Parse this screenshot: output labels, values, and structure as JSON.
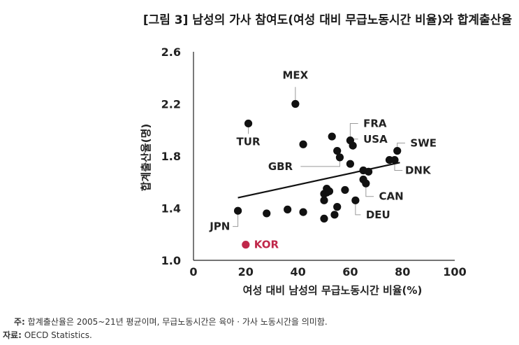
{
  "chart_data": {
    "type": "scatter",
    "title": "[그림 3] 남성의 가사 참여도(여성 대비 무급노동시간 비율)와 합계출산율",
    "xlabel": "여성 대비 남성의 무급노동시간 비율(%)",
    "ylabel": "합계출산율(명)",
    "xlim": [
      0,
      100
    ],
    "ylim": [
      1.0,
      2.6
    ],
    "xticks": [
      "0",
      "20",
      "40",
      "60",
      "80",
      "100"
    ],
    "yticks": [
      "1.0",
      "1.4",
      "1.8",
      "2.2",
      "2.6"
    ],
    "grid": false,
    "point_color": "#111111",
    "highlight_color": "#c0284a",
    "points": [
      {
        "x": 17,
        "y": 1.38
      },
      {
        "x": 21,
        "y": 2.05
      },
      {
        "x": 28,
        "y": 1.36
      },
      {
        "x": 36,
        "y": 1.39
      },
      {
        "x": 39,
        "y": 2.2
      },
      {
        "x": 42,
        "y": 1.89
      },
      {
        "x": 42,
        "y": 1.37
      },
      {
        "x": 50,
        "y": 1.32
      },
      {
        "x": 50,
        "y": 1.46
      },
      {
        "x": 50,
        "y": 1.51
      },
      {
        "x": 51,
        "y": 1.55
      },
      {
        "x": 51,
        "y": 1.52
      },
      {
        "x": 52,
        "y": 1.53
      },
      {
        "x": 53,
        "y": 1.95
      },
      {
        "x": 54,
        "y": 1.35
      },
      {
        "x": 55,
        "y": 1.84
      },
      {
        "x": 55,
        "y": 1.41
      },
      {
        "x": 56,
        "y": 1.79
      },
      {
        "x": 58,
        "y": 1.54
      },
      {
        "x": 60,
        "y": 1.92
      },
      {
        "x": 60,
        "y": 1.74
      },
      {
        "x": 61,
        "y": 1.88
      },
      {
        "x": 62,
        "y": 1.46
      },
      {
        "x": 65,
        "y": 1.62
      },
      {
        "x": 65,
        "y": 1.69
      },
      {
        "x": 66,
        "y": 1.59
      },
      {
        "x": 67,
        "y": 1.68
      },
      {
        "x": 75,
        "y": 1.77
      },
      {
        "x": 77,
        "y": 1.77
      },
      {
        "x": 78,
        "y": 1.84
      }
    ],
    "highlight": {
      "label": "KOR",
      "x": 20,
      "y": 1.12
    },
    "labels": [
      {
        "text": "MEX",
        "ref": [
          39,
          2.2
        ],
        "pos": [
          39,
          2.42
        ],
        "anchor": "middle",
        "leader": [
          [
            39,
            2.2
          ],
          [
            39,
            2.33
          ]
        ]
      },
      {
        "text": "TUR",
        "ref": [
          21,
          2.05
        ],
        "pos": [
          21,
          1.91
        ],
        "anchor": "middle",
        "leader": [
          [
            21,
            2.05
          ],
          [
            21,
            1.97
          ]
        ]
      },
      {
        "text": "FRA",
        "ref": [
          60,
          1.92
        ],
        "pos": [
          65,
          2.05
        ],
        "anchor": "start",
        "leader": [
          [
            60,
            1.92
          ],
          [
            60,
            2.05
          ],
          [
            63,
            2.05
          ]
        ]
      },
      {
        "text": "USA",
        "ref": [
          61,
          1.88
        ],
        "pos": [
          65,
          1.93
        ],
        "anchor": "start",
        "leader": [
          [
            61,
            1.88
          ],
          [
            61,
            1.93
          ],
          [
            63,
            1.93
          ]
        ]
      },
      {
        "text": "SWE",
        "ref": [
          78,
          1.84
        ],
        "pos": [
          83,
          1.9
        ],
        "anchor": "start",
        "leader": [
          [
            78,
            1.84
          ],
          [
            78,
            1.9
          ],
          [
            81,
            1.9
          ]
        ]
      },
      {
        "text": "GBR",
        "ref": [
          56,
          1.79
        ],
        "pos": [
          38,
          1.72
        ],
        "anchor": "end",
        "leader": [
          [
            56,
            1.79
          ],
          [
            56,
            1.72
          ],
          [
            41,
            1.72
          ]
        ]
      },
      {
        "text": "DNK",
        "ref": [
          77,
          1.77
        ],
        "pos": [
          81,
          1.69
        ],
        "anchor": "start",
        "leader": [
          [
            77,
            1.77
          ],
          [
            77,
            1.69
          ],
          [
            80,
            1.69
          ]
        ]
      },
      {
        "text": "CAN",
        "ref": [
          66,
          1.59
        ],
        "pos": [
          71,
          1.49
        ],
        "anchor": "start",
        "leader": [
          [
            66,
            1.59
          ],
          [
            66,
            1.49
          ],
          [
            69,
            1.49
          ]
        ]
      },
      {
        "text": "DEU",
        "ref": [
          62,
          1.46
        ],
        "pos": [
          66,
          1.35
        ],
        "anchor": "start",
        "leader": [
          [
            62,
            1.46
          ],
          [
            62,
            1.35
          ],
          [
            64,
            1.35
          ]
        ]
      },
      {
        "text": "JPN",
        "ref": [
          17,
          1.38
        ],
        "pos": [
          14,
          1.26
        ],
        "anchor": "end",
        "leader": [
          [
            17,
            1.38
          ],
          [
            17,
            1.26
          ],
          [
            15,
            1.26
          ]
        ]
      }
    ],
    "trendline": {
      "x": [
        17,
        79
      ],
      "y": [
        1.48,
        1.75
      ]
    }
  },
  "footer": {
    "note_prefix": "주:",
    "note_text": " 합계출산율은 2005~21년 평균이며, 무급노동시간은 육아 · 가사 노동시간을 의미함.",
    "source_prefix": "자료:",
    "source_text": " OECD Statistics."
  }
}
